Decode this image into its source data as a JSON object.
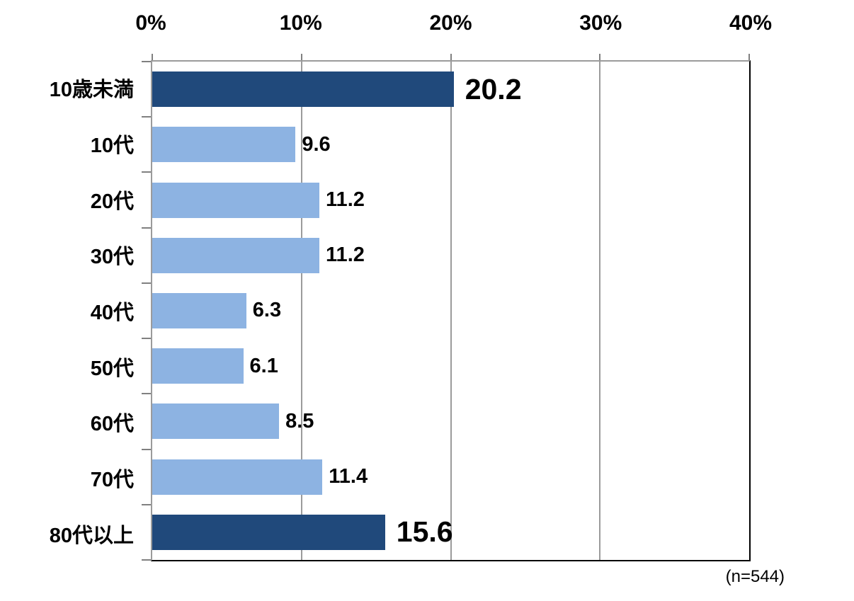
{
  "chart_data": {
    "type": "bar",
    "orientation": "horizontal",
    "title": "",
    "categories": [
      "10歳未満",
      "10代",
      "20代",
      "30代",
      "40代",
      "50代",
      "60代",
      "70代",
      "80代以上"
    ],
    "values": [
      20.2,
      9.6,
      11.2,
      11.2,
      6.3,
      6.1,
      8.5,
      11.4,
      15.6
    ],
    "emphasis": [
      true,
      false,
      false,
      false,
      false,
      false,
      false,
      false,
      true
    ],
    "x_axis": {
      "position": "top",
      "min": 0,
      "max": 40,
      "tick_step": 10,
      "tick_labels": [
        "0%",
        "10%",
        "20%",
        "30%",
        "40%"
      ]
    },
    "grid": true,
    "legend": null,
    "note": "(n=544)",
    "colors": {
      "bar_emphasis": "#20497B",
      "bar_normal": "#8DB3E2",
      "gridline": "#9B9B9B",
      "tick": "#808080",
      "axis_black": "#000000",
      "label_text": "#000000"
    }
  }
}
